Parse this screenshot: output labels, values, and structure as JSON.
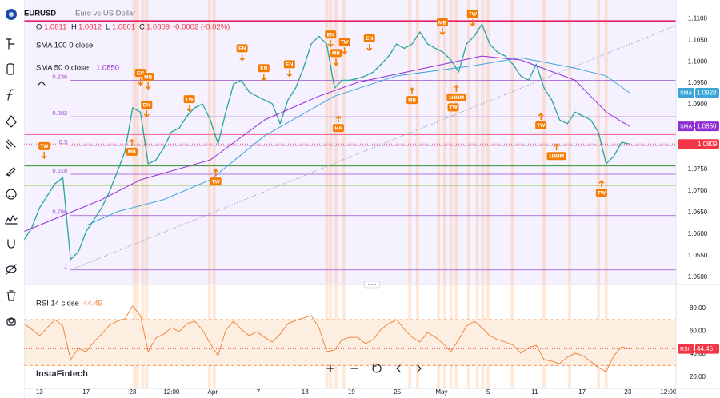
{
  "chart_data": [
    {
      "type": "line",
      "header": {
        "description": "Euro vs US Dollar",
        "ohlc": [
          {
            "key": "O",
            "value": 1.0811
          },
          {
            "key": "H",
            "value": 1.0812
          },
          {
            "key": "L",
            "value": 1.0801
          },
          {
            "key": "C",
            "value": 1.0809
          }
        ],
        "change": "-0.0002 (-0.02%)"
      },
      "xlim": [
        0,
        84
      ],
      "ylim": [
        1.0485,
        1.1143
      ],
      "yticks": [
        {
          "value": 1.11,
          "label": "1.1100"
        },
        {
          "value": 1.105,
          "label": "1.1050"
        },
        {
          "value": 1.1,
          "label": "1.1000"
        },
        {
          "value": 1.095,
          "label": "1.0950"
        },
        {
          "value": 1.09,
          "label": "1.0900"
        },
        {
          "value": 1.085,
          "label": "1.0850"
        },
        {
          "value": 1.08,
          "label": "1.0800"
        },
        {
          "value": 1.075,
          "label": "1.0750"
        },
        {
          "value": 1.07,
          "label": "1.0700"
        },
        {
          "value": 1.065,
          "label": "1.0650"
        },
        {
          "value": 1.06,
          "label": "1.0600"
        },
        {
          "value": 1.055,
          "label": "1.0550"
        },
        {
          "value": 1.05,
          "label": "1.0500"
        }
      ],
      "grid": false,
      "series": [
        {
          "name": "EURUSD",
          "color": "#26a69a",
          "badge_color": "#f23645",
          "x": [
            0,
            1,
            2,
            3,
            4,
            5,
            6,
            7,
            8,
            9,
            10,
            11,
            12,
            13,
            14,
            15,
            16,
            17,
            18,
            19,
            20,
            21,
            22,
            23,
            24,
            25,
            26,
            27,
            28,
            29,
            30,
            31,
            32,
            33,
            34,
            35,
            36,
            37,
            38,
            39,
            40,
            41,
            42,
            43,
            44,
            45,
            46,
            47,
            48,
            49,
            50,
            51,
            52,
            53,
            54,
            55,
            56,
            57,
            58,
            59,
            60,
            61,
            62,
            63,
            64,
            65,
            66,
            67,
            68,
            69,
            70,
            71,
            72,
            73,
            74,
            75,
            76,
            77,
            78
          ],
          "values": [
            1.0587,
            1.0615,
            1.0661,
            1.0689,
            1.0717,
            1.0731,
            1.0541,
            1.0559,
            1.0606,
            1.0633,
            1.0661,
            1.0698,
            1.0744,
            1.0791,
            1.0893,
            1.0883,
            1.0763,
            1.0772,
            1.08,
            1.0837,
            1.0846,
            1.0874,
            1.0893,
            1.0902,
            1.0865,
            1.0809,
            1.0883,
            1.0948,
            1.0957,
            1.093,
            1.092,
            1.0911,
            1.0902,
            1.0856,
            1.0911,
            1.0939,
            1.0985,
            1.1041,
            1.1059,
            1.1041,
            1.0939,
            1.0957,
            1.0957,
            1.0961,
            1.0967,
            1.0976,
            1.0994,
            1.1013,
            1.1041,
            1.1031,
            1.1041,
            1.1069,
            1.1041,
            1.1031,
            1.1022,
            1.1004,
            1.0976,
            1.1041,
            1.1059,
            1.1087,
            1.1041,
            1.1022,
            1.1013,
            1.0994,
            1.0967,
            1.0957,
            1.0994,
            1.0939,
            1.0911,
            1.0865,
            1.0856,
            1.0883,
            1.0874,
            1.0865,
            1.0837,
            1.0763,
            1.0781,
            1.0813,
            1.0809
          ]
        },
        {
          "name": "SMA 100 0 close",
          "badge": "SMA",
          "color": "#3aa7d8",
          "x": [
            8,
            12,
            18,
            24,
            31,
            40,
            48,
            58,
            64,
            71,
            75,
            78
          ],
          "values": [
            1.062,
            1.0652,
            1.068,
            1.0726,
            1.0828,
            1.092,
            1.0967,
            1.0991,
            1.1009,
            1.0985,
            1.0967,
            1.0928
          ]
        },
        {
          "name": "SMA 50 0 close",
          "badge": "SMA",
          "color": "#8e2fd6",
          "last_label": "1.0850",
          "x": [
            0,
            5,
            10,
            15,
            24,
            31,
            38,
            43,
            54,
            59,
            64,
            71,
            75,
            78
          ],
          "values": [
            1.0606,
            1.0643,
            1.068,
            1.0726,
            1.0772,
            1.0865,
            1.092,
            1.0952,
            1.0994,
            1.1013,
            1.1004,
            1.0957,
            1.0883,
            1.085
          ]
        }
      ],
      "fib": {
        "x_start": 6,
        "color": "#9c4dcc",
        "levels": [
          {
            "level": 0.236,
            "price": 1.0957
          },
          {
            "level": 0.382,
            "price": 1.0872
          },
          {
            "level": 0.5,
            "price": 1.0806
          },
          {
            "level": 0.618,
            "price": 1.0739
          },
          {
            "level": 0.786,
            "price": 1.0643
          },
          {
            "level": 1,
            "price": 1.0517
          }
        ]
      },
      "levels": [
        {
          "price": 1.1094,
          "color": "#e91e63",
          "width": 2
        },
        {
          "price": 1.0759,
          "color": "#43a047",
          "width": 2
        },
        {
          "price": 1.0831,
          "color": "#f06292",
          "width": 1
        },
        {
          "price": 1.0713,
          "color": "#8bc34a",
          "width": 1
        }
      ],
      "trendline": {
        "x": [
          6,
          84
        ],
        "values": [
          1.0517,
          1.1084
        ],
        "color": "#9aa3b5"
      },
      "highlights": [
        14.2,
        14.6,
        15.3,
        15.8,
        23.9,
        24.5,
        39,
        39.5,
        40.2,
        41.2,
        49.7,
        50.7,
        53.4,
        54.2,
        55,
        55.7,
        57.3,
        58.4,
        59.1,
        59.8,
        62.9,
        67,
        70.3,
        74,
        75
      ],
      "annotation_color": "#f57c00",
      "annotations": [
        {
          "text": "TW",
          "x": 2.6,
          "y": 1.0804,
          "arrow": "down"
        },
        {
          "text": "EN",
          "x": 15,
          "y": 1.0974,
          "arrow": "down"
        },
        {
          "text": "MB",
          "x": 16,
          "y": 1.0965,
          "arrow": "down"
        },
        {
          "text": "EN",
          "x": 15.8,
          "y": 1.09,
          "arrow": "down"
        },
        {
          "text": "MB",
          "x": 13.9,
          "y": 1.0791,
          "arrow": "up"
        },
        {
          "text": "TW",
          "x": 21.3,
          "y": 1.0913,
          "arrow": "down"
        },
        {
          "text": "TW",
          "x": 24.7,
          "y": 1.0722,
          "arrow": "up"
        },
        {
          "text": "EN",
          "x": 28.1,
          "y": 1.1031,
          "arrow": "down"
        },
        {
          "text": "EN",
          "x": 30.9,
          "y": 1.0985,
          "arrow": "down"
        },
        {
          "text": "EN",
          "x": 34.2,
          "y": 1.0994,
          "arrow": "down"
        },
        {
          "text": "EN",
          "x": 39.5,
          "y": 1.1063,
          "arrow": "down"
        },
        {
          "text": "MB",
          "x": 40.2,
          "y": 1.102,
          "arrow": "down"
        },
        {
          "text": "TW",
          "x": 41.3,
          "y": 1.1046,
          "arrow": "down"
        },
        {
          "text": "EN",
          "x": 44.5,
          "y": 1.1054,
          "arrow": "down"
        },
        {
          "text": "HA",
          "x": 40.5,
          "y": 1.0846,
          "arrow": "up"
        },
        {
          "text": "MB",
          "x": 50,
          "y": 1.0911,
          "arrow": "up"
        },
        {
          "text": "1HMM",
          "x": 55.7,
          "y": 1.0917,
          "arrow": "up"
        },
        {
          "text": "TW",
          "x": 55.3,
          "y": 1.0894,
          "arrow": "none"
        },
        {
          "text": "MB",
          "x": 53.9,
          "y": 1.1091,
          "arrow": "down"
        },
        {
          "text": "TW",
          "x": 57.8,
          "y": 1.1111,
          "arrow": "down"
        },
        {
          "text": "TW",
          "x": 66.6,
          "y": 1.0852,
          "arrow": "up"
        },
        {
          "text": "1HMM",
          "x": 68.6,
          "y": 1.0781,
          "arrow": "up"
        },
        {
          "text": "TW",
          "x": 74.4,
          "y": 1.0696,
          "arrow": "up"
        }
      ]
    },
    {
      "type": "line",
      "xlim": [
        0,
        84
      ],
      "ylim": [
        10,
        100
      ],
      "yticks": [
        {
          "value": 80,
          "label": "80.00"
        },
        {
          "value": 60,
          "label": "60.00"
        },
        {
          "value": 40,
          "label": "40.00"
        },
        {
          "value": 20,
          "label": "20.00"
        }
      ],
      "xticks": [
        {
          "value": 2,
          "label": "13"
        },
        {
          "value": 8,
          "label": "17"
        },
        {
          "value": 14,
          "label": "23"
        },
        {
          "value": 19,
          "label": "12:00"
        },
        {
          "value": 24.3,
          "label": "Apr"
        },
        {
          "value": 30.2,
          "label": "7"
        },
        {
          "value": 36.2,
          "label": "13"
        },
        {
          "value": 42.2,
          "label": "19"
        },
        {
          "value": 48.1,
          "label": "25"
        },
        {
          "value": 53.8,
          "label": "May"
        },
        {
          "value": 59.8,
          "label": "5"
        },
        {
          "value": 65.8,
          "label": "11"
        },
        {
          "value": 71.9,
          "label": "17"
        },
        {
          "value": 77.8,
          "label": "23"
        },
        {
          "value": 83,
          "label": "12:00"
        }
      ],
      "grid": false,
      "levels": [
        70,
        30
      ],
      "band_color": "#fdeee2",
      "series": [
        {
          "name": "RSI 14 close",
          "badge": "RSI",
          "color": "#f0883e",
          "badge_color": "#f23645",
          "x": [
            0,
            1,
            2,
            3,
            4,
            5,
            6,
            7,
            8,
            9,
            10,
            11,
            12,
            13,
            14,
            15,
            16,
            17,
            18,
            19,
            20,
            21,
            22,
            23,
            24,
            25,
            26,
            27,
            28,
            29,
            30,
            31,
            32,
            33,
            34,
            35,
            36,
            37,
            38,
            39,
            40,
            41,
            42,
            43,
            44,
            45,
            46,
            47,
            48,
            49,
            50,
            51,
            52,
            53,
            54,
            55,
            56,
            57,
            58,
            59,
            60,
            61,
            62,
            63,
            64,
            65,
            66,
            67,
            68,
            69,
            70,
            71,
            72,
            73,
            74,
            75,
            76,
            77,
            78
          ],
          "values": [
            66.5,
            61.6,
            56.0,
            63.0,
            70.0,
            64.4,
            35.1,
            44.9,
            42.1,
            50.5,
            57.4,
            65.1,
            68.6,
            70.7,
            81.9,
            73.5,
            42.1,
            54.0,
            57.4,
            63.0,
            59.5,
            66.5,
            68.6,
            60.9,
            49.1,
            38.6,
            60.9,
            68.6,
            61.6,
            56.0,
            59.5,
            54.6,
            50.5,
            57.4,
            66.5,
            69.3,
            71.4,
            73.5,
            63.0,
            42.1,
            43.5,
            52.6,
            54.6,
            54.6,
            49.1,
            52.6,
            61.6,
            66.5,
            70.0,
            61.6,
            54.6,
            50.5,
            58.8,
            54.6,
            49.1,
            42.1,
            52.6,
            64.4,
            68.6,
            63.0,
            56.0,
            52.6,
            50.5,
            47.7,
            40.7,
            45.6,
            47.7,
            35.1,
            33.7,
            31.6,
            37.2,
            40.7,
            38.6,
            33.7,
            28.1,
            24.6,
            38.6,
            46.3,
            44.45
          ]
        }
      ],
      "watermark": "InstaFintech"
    }
  ]
}
